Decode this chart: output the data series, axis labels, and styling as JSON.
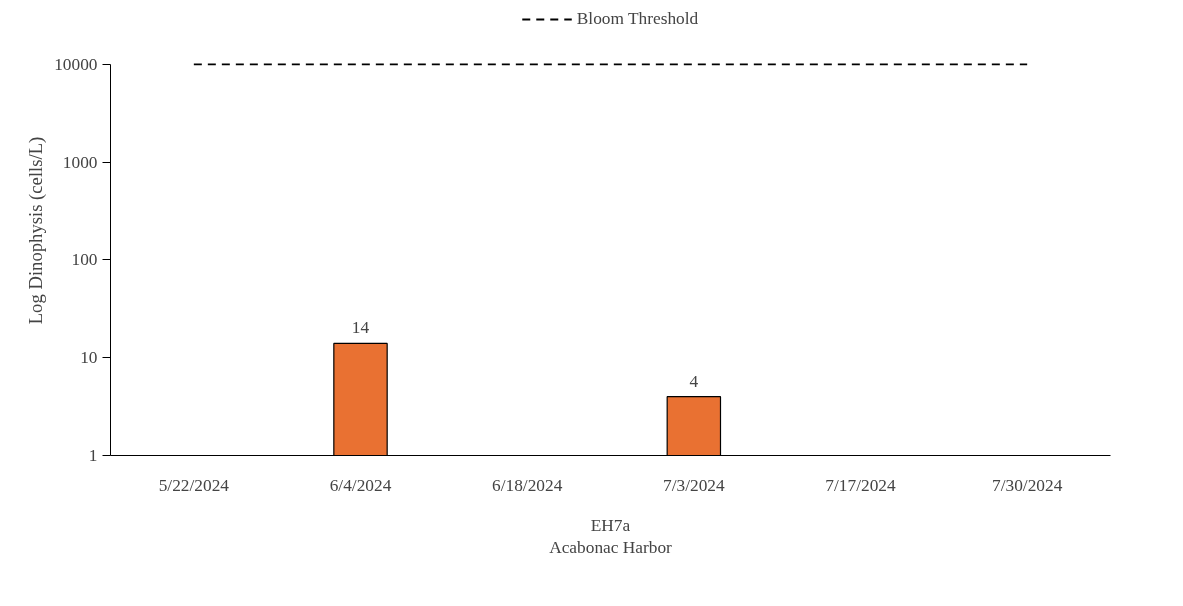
{
  "chart_data": {
    "type": "bar",
    "categories": [
      "5/22/2024",
      "6/4/2024",
      "6/18/2024",
      "7/3/2024",
      "7/17/2024",
      "7/30/2024"
    ],
    "values": [
      null,
      14,
      null,
      4,
      null,
      null
    ],
    "color": "#e97132",
    "xlabel": "EH7a",
    "ylabel": "Log Dinophysis (cells/L)",
    "annotations": [
      "Acabonac Harbor"
    ],
    "log": true,
    "ylim": [
      1,
      10000
    ],
    "yticks": [
      1,
      10,
      100,
      1000,
      10000
    ],
    "data_labels": true,
    "ref_lines": [
      {
        "axis": "y",
        "value": 10000,
        "label": "Bloom Threshold",
        "color": "#000000",
        "line_style": "dashed"
      }
    ],
    "legend": "top",
    "grid": false
  }
}
